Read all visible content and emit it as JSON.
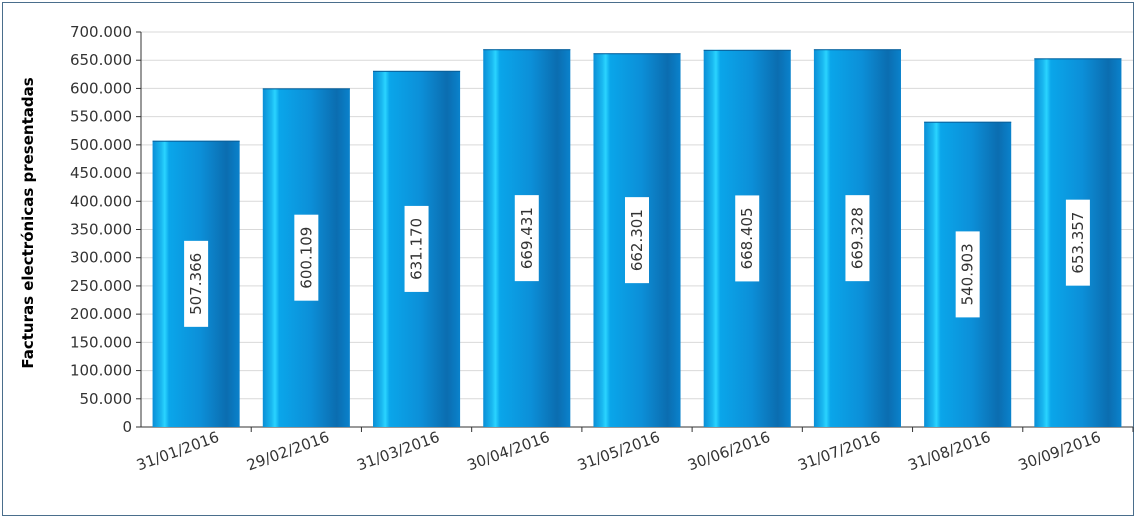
{
  "chart_data": {
    "type": "bar",
    "categories": [
      "31/01/2016",
      "29/02/2016",
      "31/03/2016",
      "30/04/2016",
      "31/05/2016",
      "30/06/2016",
      "31/07/2016",
      "31/08/2016",
      "30/09/2016"
    ],
    "values": [
      507366,
      600109,
      631170,
      669431,
      662301,
      668405,
      669328,
      540903,
      653357
    ],
    "data_labels": [
      "507.366",
      "600.109",
      "631.170",
      "669.431",
      "662.301",
      "668.405",
      "669.328",
      "540.903",
      "653.357"
    ],
    "title": "",
    "xlabel": "",
    "ylabel": "Facturas electrónicas presentadas",
    "ylim": [
      0,
      700000
    ],
    "yticks": [
      0,
      50000,
      100000,
      150000,
      200000,
      250000,
      300000,
      350000,
      400000,
      450000,
      500000,
      550000,
      600000,
      650000,
      700000
    ],
    "ytick_labels": [
      "0",
      "50.000",
      "100.000",
      "150.000",
      "200.000",
      "250.000",
      "300.000",
      "350.000",
      "400.000",
      "450.000",
      "500.000",
      "550.000",
      "600.000",
      "650.000",
      "700.000"
    ],
    "grid": true,
    "legend": "none",
    "colors": {
      "bar_dark": "#0b6db0",
      "bar_mid": "#0a9be3",
      "bar_highlight": "#2ad4ff",
      "grid": "#d9d9d9",
      "frame": "#4a6e8c"
    }
  }
}
